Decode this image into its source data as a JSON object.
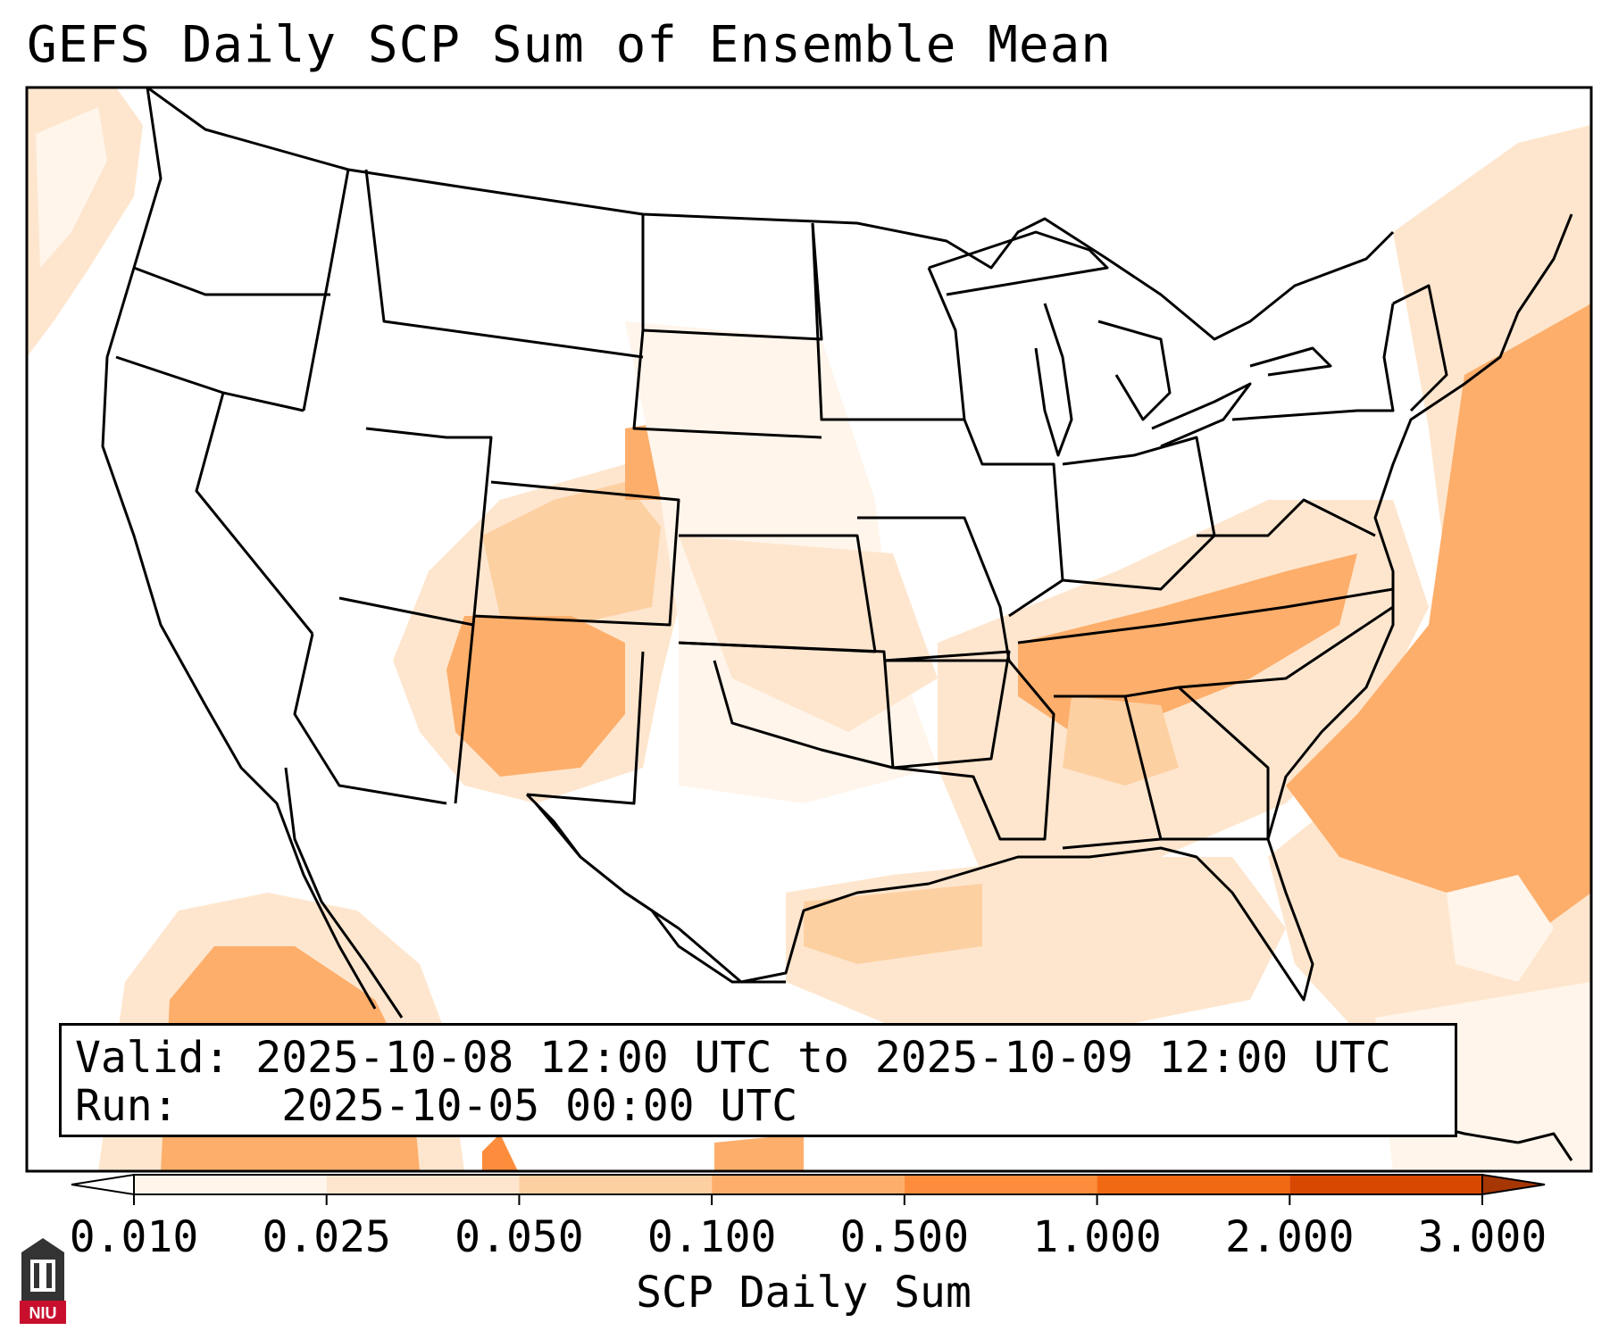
{
  "title": "GEFS Daily SCP Sum of Ensemble Mean",
  "info": {
    "valid_label": "Valid:",
    "valid_value": "2025-10-08 12:00 UTC to 2025-10-09 12:00 UTC",
    "run_label": "Run:",
    "run_value": "2025-10-05 00:00 UTC"
  },
  "colorbar": {
    "label": "SCP Daily Sum",
    "ticks": [
      "0.010",
      "0.025",
      "0.050",
      "0.100",
      "0.500",
      "1.000",
      "2.000",
      "3.000"
    ],
    "colors": [
      "#fff5eb",
      "#fee6ce",
      "#fdd0a2",
      "#fdae6b",
      "#fd8d3c",
      "#f16913",
      "#d94801",
      "#a63603"
    ],
    "extend": "both"
  },
  "logo": {
    "text": "NIU",
    "color": "#c8102e"
  },
  "icons": {
    "logo": "university-seal-icon"
  }
}
